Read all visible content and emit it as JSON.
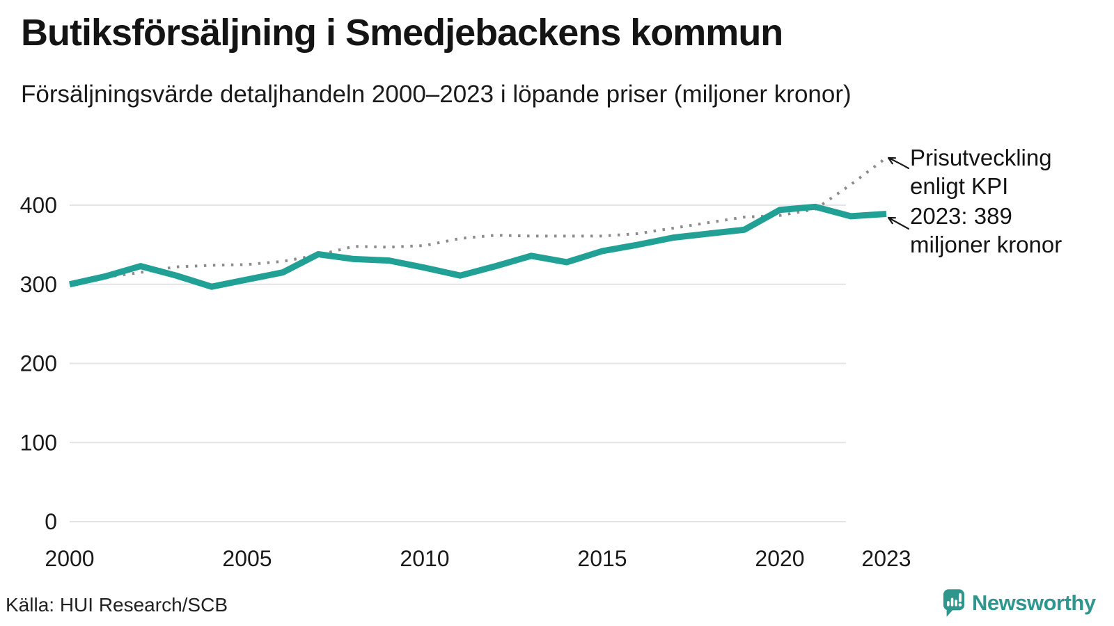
{
  "chart_data": {
    "type": "line",
    "title": "Butiksförsäljning i Smedjebackens kommun",
    "subtitle": "Försäljningsvärde detaljhandeln 2000–2023 i löpande priser (miljoner kronor)",
    "x": [
      2000,
      2001,
      2002,
      2003,
      2004,
      2005,
      2006,
      2007,
      2008,
      2009,
      2010,
      2011,
      2012,
      2013,
      2014,
      2015,
      2016,
      2017,
      2018,
      2019,
      2020,
      2021,
      2022,
      2023
    ],
    "series": [
      {
        "name": "Försäljningsvärde detaljhandeln (löpande priser)",
        "color": "#21a196",
        "line_style": "solid",
        "values": [
          300,
          310,
          323,
          311,
          297,
          306,
          315,
          338,
          332,
          330,
          321,
          311,
          323,
          336,
          328,
          342,
          350,
          359,
          364,
          369,
          394,
          398,
          386,
          389
        ]
      },
      {
        "name": "Prisutveckling enligt KPI",
        "color": "#8c8c8c",
        "line_style": "dotted",
        "values": [
          300,
          309,
          315,
          322,
          324,
          325,
          329,
          337,
          348,
          347,
          349,
          358,
          362,
          361,
          361,
          361,
          364,
          371,
          378,
          385,
          387,
          395,
          426,
          460
        ]
      }
    ],
    "ylim": [
      0,
      470
    ],
    "y_ticks": [
      0,
      100,
      200,
      300,
      400
    ],
    "x_ticks": [
      2000,
      2005,
      2010,
      2015,
      2020,
      2023
    ],
    "grid": "horizontal-only",
    "legend": "inline-annotations",
    "annotations": [
      {
        "target": "kpi-line-end",
        "lines": [
          "Prisutveckling",
          "enligt KPI"
        ]
      },
      {
        "target": "sales-line-end-2023",
        "lines": [
          "2023: 389",
          "miljoner kronor"
        ]
      }
    ]
  },
  "footer": {
    "source": "Källa: HUI Research/SCB",
    "brand": "Newsworthy"
  }
}
